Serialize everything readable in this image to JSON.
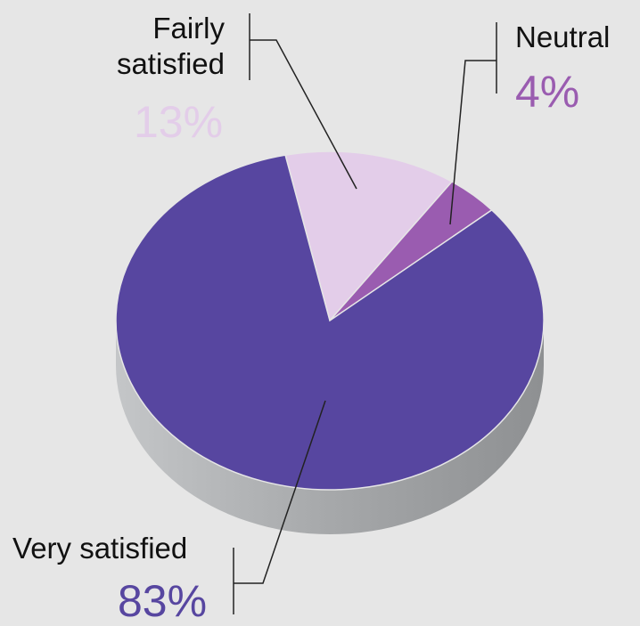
{
  "chart_data": {
    "type": "pie",
    "categories": [
      "Fairly satisfied",
      "Neutral",
      "Very satisfied"
    ],
    "values": [
      13,
      4,
      83
    ],
    "value_labels": [
      "13%",
      "4%",
      "83%"
    ],
    "colors": [
      "#e3cde9",
      "#9a5cb0",
      "#5746a0"
    ]
  }
}
